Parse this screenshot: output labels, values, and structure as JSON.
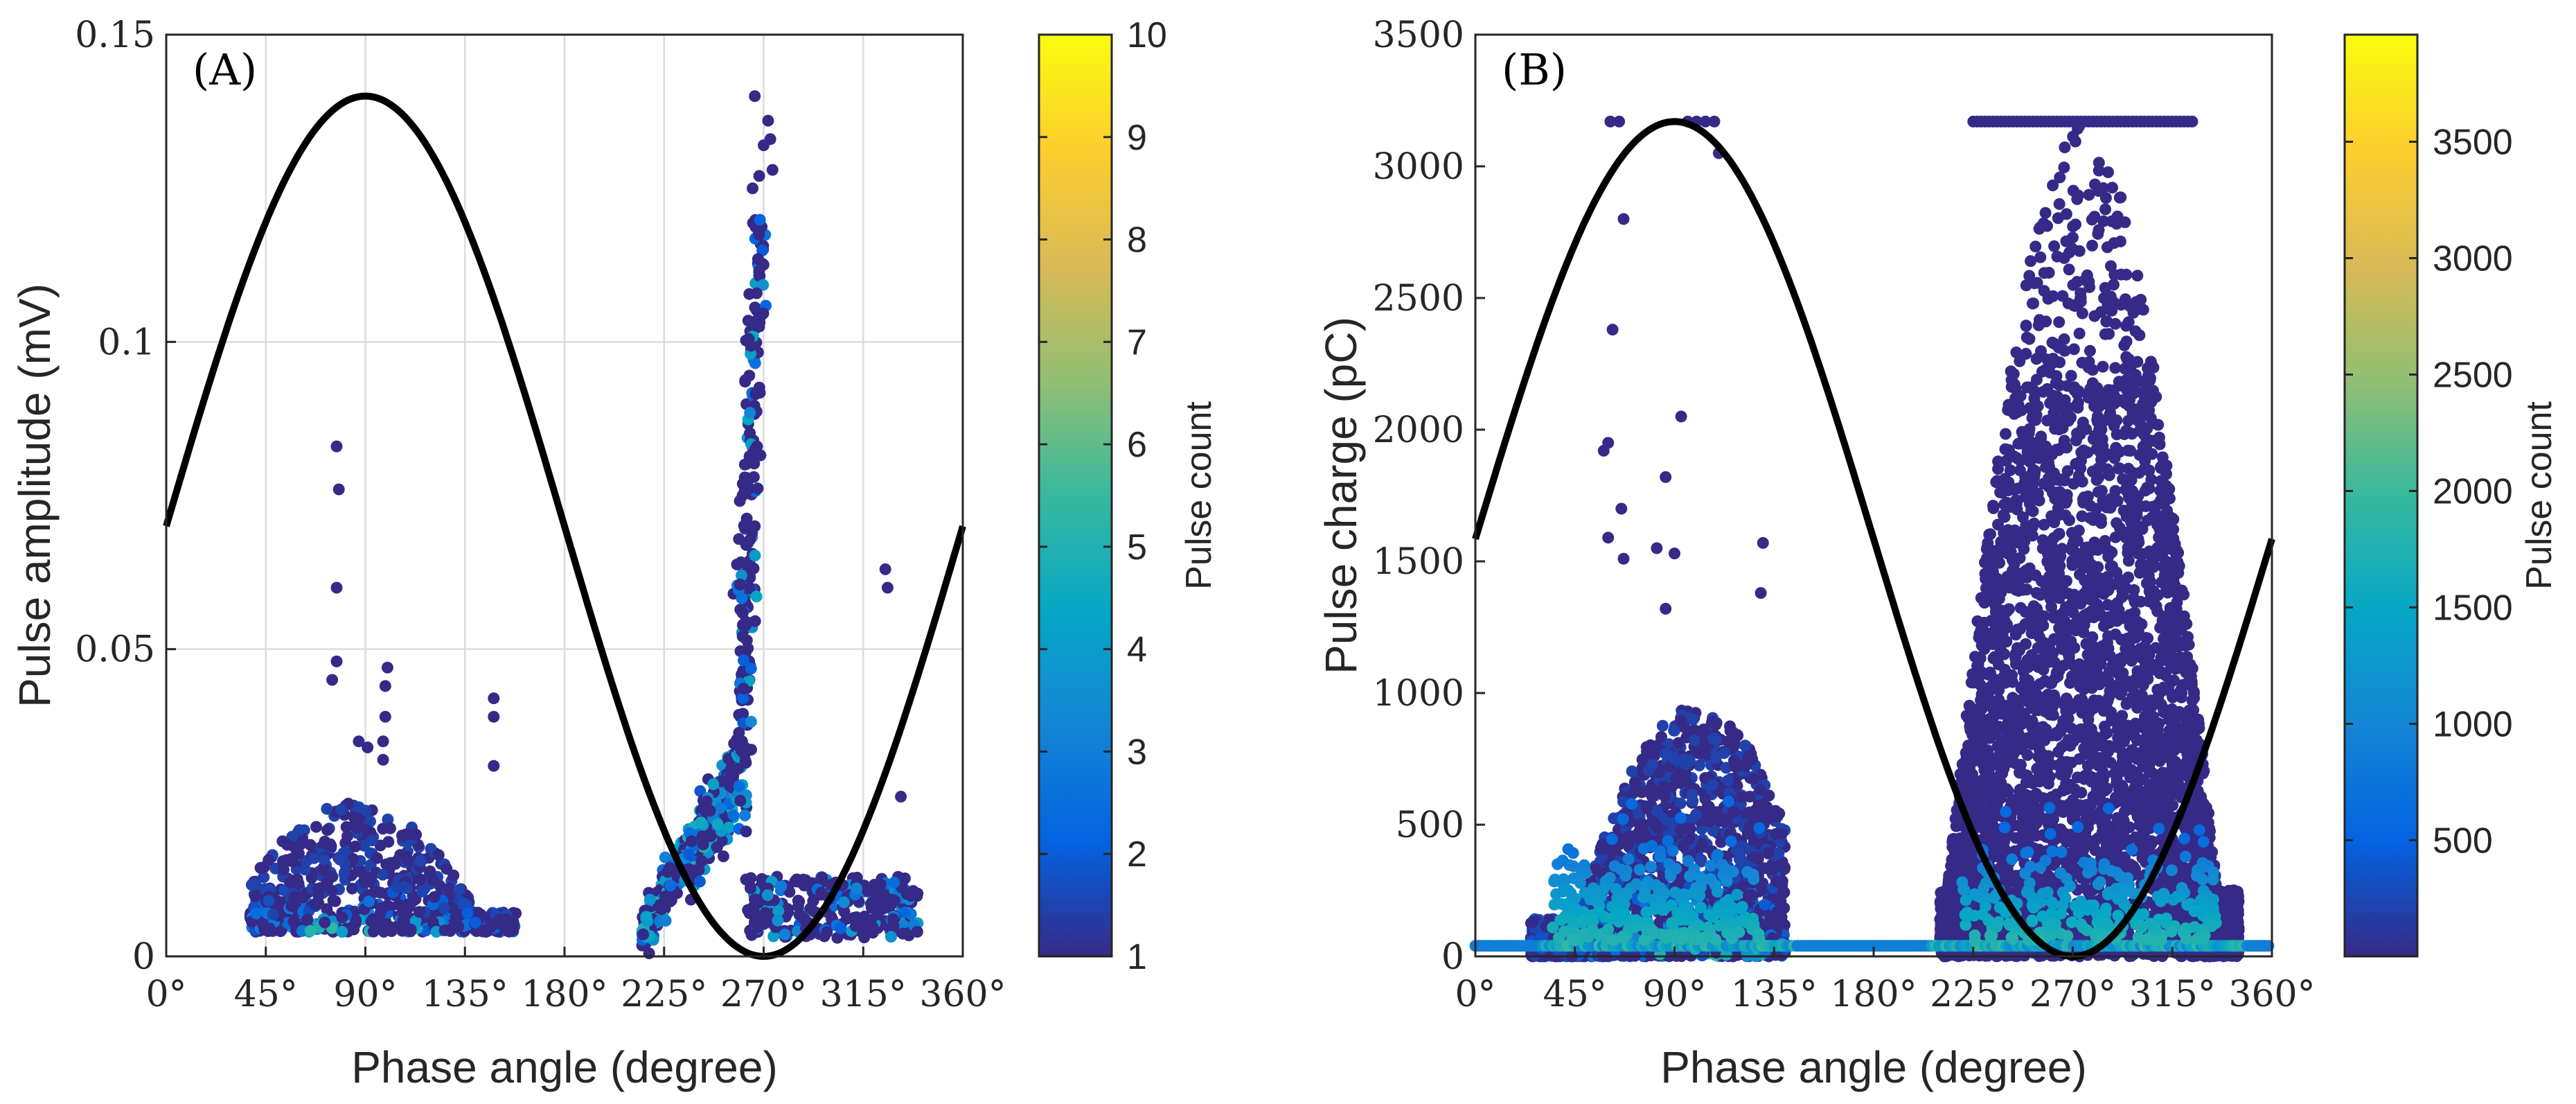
{
  "chart_data": [
    {
      "type": "scatter",
      "panel_label": "(A)",
      "xlabel": "Phase angle (degree)",
      "ylabel": "Pulse amplitude (mV)",
      "xlim": [
        0,
        360
      ],
      "ylim": [
        0,
        0.15
      ],
      "x_ticks": [
        0,
        45,
        90,
        135,
        180,
        225,
        270,
        315,
        360
      ],
      "x_tick_labels": [
        "0°",
        "45°",
        "90°",
        "135°",
        "180°",
        "225°",
        "270°",
        "315°",
        "360°"
      ],
      "y_ticks": [
        0,
        0.05,
        0.1,
        0.15
      ],
      "y_tick_labels": [
        "0",
        "0.05",
        "0.1",
        "0.15"
      ],
      "grid": true,
      "reference_sine": {
        "color": "#000000",
        "min": 0,
        "max": 0.14,
        "offset": 0.07,
        "peak_deg": 90
      },
      "colorbar": {
        "title": "Pulse count",
        "range": [
          1,
          10
        ],
        "ticks": [
          1,
          2,
          3,
          4,
          5,
          6,
          7,
          8,
          9,
          10
        ],
        "tick_labels": [
          "1",
          "2",
          "3",
          "4",
          "5",
          "6",
          "7",
          "8",
          "9",
          "10"
        ],
        "colormap": [
          "#352a87",
          "#0363e1",
          "#1485d4",
          "#06a7c6",
          "#38b99e",
          "#92bf73",
          "#d9ba56",
          "#fcce2e",
          "#f9fb0e"
        ]
      },
      "clusters": [
        {
          "x_range": [
            38,
            158
          ],
          "y_range": [
            0.004,
            0.025
          ],
          "shape": "hump",
          "peak_x": 85,
          "n": 650
        },
        {
          "x_range": [
            215,
            258
          ],
          "y_range": [
            0.004,
            0.035
          ],
          "shape": "rise",
          "n": 320
        },
        {
          "x_range": [
            252,
            272
          ],
          "y_range": [
            0.02,
            0.12
          ],
          "shape": "band",
          "n": 220
        },
        {
          "x_range": [
            262,
            340
          ],
          "y_range": [
            0.003,
            0.013
          ],
          "shape": "flat",
          "n": 260
        }
      ],
      "outliers": [
        [
          77,
          0.083
        ],
        [
          78,
          0.076
        ],
        [
          77,
          0.06
        ],
        [
          77,
          0.048
        ],
        [
          75,
          0.045
        ],
        [
          100,
          0.047
        ],
        [
          99,
          0.044
        ],
        [
          99,
          0.039
        ],
        [
          98,
          0.035
        ],
        [
          98,
          0.032
        ],
        [
          87,
          0.035
        ],
        [
          91,
          0.034
        ],
        [
          148,
          0.042
        ],
        [
          148,
          0.039
        ],
        [
          148,
          0.031
        ],
        [
          266,
          0.14
        ],
        [
          270,
          0.132
        ],
        [
          272,
          0.136
        ],
        [
          273,
          0.133
        ],
        [
          274,
          0.128
        ],
        [
          268,
          0.127
        ],
        [
          265,
          0.125
        ],
        [
          325,
          0.063
        ],
        [
          326,
          0.06
        ],
        [
          332,
          0.026
        ],
        [
          267,
          0.083
        ],
        [
          266,
          0.07
        ]
      ]
    },
    {
      "type": "scatter",
      "panel_label": "(B)",
      "xlabel": "Phase angle (degree)",
      "ylabel": "Pulse charge (pC)",
      "xlim": [
        0,
        360
      ],
      "ylim": [
        0,
        3500
      ],
      "x_ticks": [
        0,
        45,
        90,
        135,
        180,
        225,
        270,
        315,
        360
      ],
      "x_tick_labels": [
        "0°",
        "45°",
        "90°",
        "135°",
        "180°",
        "225°",
        "270°",
        "315°",
        "360°"
      ],
      "y_ticks": [
        0,
        500,
        1000,
        1500,
        2000,
        2500,
        3000,
        3500
      ],
      "y_tick_labels": [
        "0",
        "500",
        "1000",
        "1500",
        "2000",
        "2500",
        "3000",
        "3500"
      ],
      "grid": false,
      "reference_sine": {
        "color": "#000000",
        "min": 0,
        "max": 3170,
        "offset": 1585,
        "peak_deg": 90
      },
      "colorbar": {
        "title": "Pulse count",
        "range": [
          1,
          3960
        ],
        "ticks": [
          500,
          1000,
          1500,
          2000,
          2500,
          3000,
          3500
        ],
        "tick_labels": [
          "500",
          "1000",
          "1500",
          "2000",
          "2500",
          "3000",
          "3500"
        ],
        "colormap": [
          "#352a87",
          "#0363e1",
          "#1485d4",
          "#06a7c6",
          "#38b99e",
          "#92bf73",
          "#d9ba56",
          "#fcce2e",
          "#f9fb0e"
        ]
      },
      "clusters": [
        {
          "x_range": [
            25,
            140
          ],
          "y_range": [
            0,
            950
          ],
          "shape": "hump",
          "peak_x": 100,
          "n": 1800
        },
        {
          "x_range": [
            210,
            345
          ],
          "y_range": [
            0,
            3170
          ],
          "shape": "tall",
          "peak_x": 270,
          "n": 4200
        }
      ],
      "saturation_level": 3170,
      "baseline_level": 40,
      "outliers": [
        [
          67,
          2800
        ],
        [
          62,
          2380
        ],
        [
          60,
          1950
        ],
        [
          58,
          1920
        ],
        [
          66,
          1700
        ],
        [
          60,
          1590
        ],
        [
          67,
          1510
        ],
        [
          86,
          1820
        ],
        [
          93,
          2050
        ],
        [
          82,
          1550
        ],
        [
          90,
          1530
        ],
        [
          86,
          1320
        ],
        [
          130,
          1570
        ],
        [
          129,
          1380
        ],
        [
          61,
          3170
        ],
        [
          65,
          3170
        ],
        [
          96,
          3170
        ],
        [
          100,
          3170
        ],
        [
          104,
          3170
        ],
        [
          108,
          3170
        ],
        [
          110,
          3050
        ]
      ]
    }
  ]
}
